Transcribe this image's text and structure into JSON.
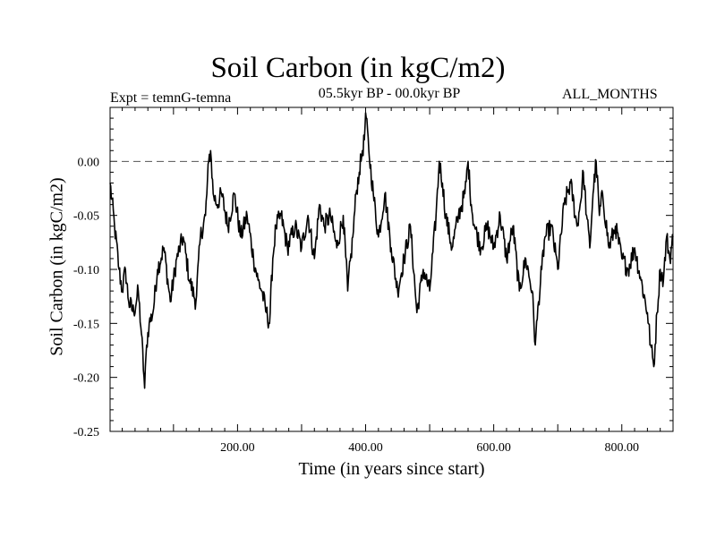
{
  "chart_data": {
    "type": "line",
    "title": "Soil Carbon (in kgC/m2)",
    "subtitle": "05.5kyr BP - 00.0kyr BP",
    "annotations": {
      "left": "Expt = temnG-temna",
      "right": "ALL_MONTHS"
    },
    "xlabel": "Time (in years since start)",
    "ylabel": "Soil Carbon (in kgC/m2)",
    "xlim": [
      1,
      880
    ],
    "ylim": [
      -0.25,
      0.05
    ],
    "x_ticks": [
      200,
      400,
      600,
      800
    ],
    "x_tick_labels": [
      "200.00",
      "400.00",
      "600.00",
      "800.00"
    ],
    "y_ticks": [
      0.0,
      -0.05,
      -0.1,
      -0.15,
      -0.2,
      -0.25
    ],
    "y_tick_labels": [
      "0.00",
      "-0.05",
      "-0.10",
      "-0.15",
      "-0.20",
      "-0.25"
    ],
    "reference_line": {
      "y": 0.0,
      "style": "dashed"
    },
    "series": [
      {
        "name": "Soil Carbon",
        "x": [
          1,
          8,
          15,
          20,
          25,
          30,
          38,
          45,
          50,
          55,
          58,
          62,
          68,
          75,
          85,
          95,
          105,
          115,
          125,
          135,
          142,
          150,
          155,
          158,
          162,
          168,
          175,
          185,
          195,
          205,
          215,
          225,
          232,
          238,
          245,
          250,
          255,
          260,
          268,
          278,
          290,
          300,
          310,
          320,
          328,
          335,
          345,
          355,
          365,
          372,
          380,
          385,
          390,
          395,
          398,
          400,
          405,
          412,
          420,
          430,
          440,
          450,
          460,
          470,
          480,
          490,
          500,
          510,
          515,
          520,
          525,
          535,
          545,
          555,
          560,
          565,
          570,
          580,
          590,
          600,
          610,
          620,
          630,
          640,
          650,
          660,
          665,
          670,
          675,
          680,
          690,
          700,
          710,
          720,
          730,
          735,
          740,
          745,
          750,
          755,
          760,
          765,
          770,
          780,
          790,
          800,
          810,
          820,
          830,
          840,
          845,
          850,
          855,
          860,
          865,
          870,
          875,
          880
        ],
        "values": [
          -0.02,
          -0.06,
          -0.1,
          -0.12,
          -0.1,
          -0.13,
          -0.14,
          -0.12,
          -0.16,
          -0.21,
          -0.17,
          -0.15,
          -0.14,
          -0.1,
          -0.08,
          -0.13,
          -0.09,
          -0.07,
          -0.11,
          -0.13,
          -0.07,
          -0.05,
          0.0,
          0.01,
          -0.03,
          -0.04,
          -0.03,
          -0.06,
          -0.03,
          -0.07,
          -0.05,
          -0.09,
          -0.11,
          -0.12,
          -0.14,
          -0.15,
          -0.09,
          -0.06,
          -0.05,
          -0.08,
          -0.06,
          -0.08,
          -0.05,
          -0.09,
          -0.04,
          -0.06,
          -0.05,
          -0.08,
          -0.05,
          -0.12,
          -0.07,
          -0.03,
          -0.01,
          0.01,
          0.02,
          0.045,
          0.01,
          -0.03,
          -0.07,
          -0.03,
          -0.08,
          -0.12,
          -0.09,
          -0.06,
          -0.14,
          -0.1,
          -0.12,
          -0.05,
          0.0,
          -0.02,
          -0.05,
          -0.08,
          -0.05,
          -0.03,
          0.0,
          -0.04,
          -0.06,
          -0.08,
          -0.06,
          -0.08,
          -0.05,
          -0.09,
          -0.06,
          -0.12,
          -0.09,
          -0.12,
          -0.17,
          -0.13,
          -0.1,
          -0.07,
          -0.06,
          -0.1,
          -0.04,
          -0.02,
          -0.06,
          -0.04,
          -0.01,
          -0.05,
          -0.08,
          -0.03,
          0.0,
          -0.05,
          -0.03,
          -0.08,
          -0.06,
          -0.09,
          -0.1,
          -0.08,
          -0.11,
          -0.14,
          -0.17,
          -0.19,
          -0.14,
          -0.1,
          -0.11,
          -0.07,
          -0.09,
          -0.07
        ]
      }
    ]
  }
}
